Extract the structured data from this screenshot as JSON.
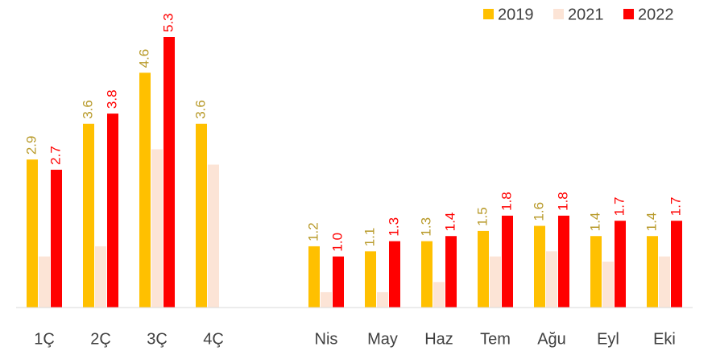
{
  "chart_data": {
    "type": "bar",
    "categories": [
      "1Ç",
      "2Ç",
      "3Ç",
      "4Ç",
      null,
      "Nis",
      "May",
      "Haz",
      "Tem",
      "Ağu",
      "Eyl",
      "Eki"
    ],
    "series": [
      {
        "name": "2019",
        "color": "#ffc000",
        "label_color": "#b89a2a",
        "values": [
          2.9,
          3.6,
          4.6,
          3.6,
          null,
          1.2,
          1.1,
          1.3,
          1.5,
          1.6,
          1.4,
          1.4
        ],
        "value_labels": [
          "2.9",
          "3.6",
          "4.6",
          "3.6",
          null,
          "1.2",
          "1.1",
          "1.3",
          "1.5",
          "1.6",
          "1.4",
          "1.4"
        ]
      },
      {
        "name": "2021",
        "color": "#fce4d6",
        "values": [
          1.0,
          1.2,
          3.1,
          2.8,
          null,
          0.3,
          0.3,
          0.5,
          1.0,
          1.1,
          0.9,
          1.0
        ]
      },
      {
        "name": "2022",
        "color": "#ff0000",
        "label_color": "#ff0000",
        "values": [
          2.7,
          3.8,
          5.3,
          null,
          null,
          1.0,
          1.3,
          1.4,
          1.8,
          1.8,
          1.7,
          1.7
        ],
        "value_labels": [
          "2.7",
          "3.8",
          "5.3",
          null,
          null,
          "1.0",
          "1.3",
          "1.4",
          "1.8",
          "1.8",
          "1.7",
          "1.7"
        ]
      }
    ],
    "ylim": [
      0,
      5.3
    ],
    "legend": "top-right"
  }
}
